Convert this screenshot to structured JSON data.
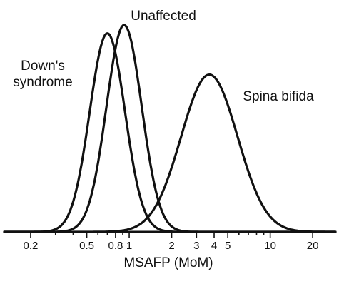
{
  "chart_data": {
    "type": "line",
    "title": "",
    "xlabel": "MSAFP (MoM)",
    "ylabel": "",
    "x_scale": "log",
    "xlim": [
      0.13,
      29
    ],
    "tick_labels": [
      "0.2",
      "0.5",
      "0.8",
      "1",
      "2",
      "3",
      "4",
      "5",
      "10",
      "20"
    ],
    "tick_values": [
      0.2,
      0.5,
      0.8,
      1,
      2,
      3,
      4,
      5,
      10,
      20
    ],
    "minor_ticks": [
      0.3,
      0.4,
      0.6,
      0.7,
      0.9,
      6,
      7,
      8,
      9
    ],
    "grid": false,
    "legend": "none",
    "series": [
      {
        "name": "Down's syndrome",
        "median": 0.7,
        "log_sd": 0.125,
        "relative_peak": 0.96
      },
      {
        "name": "Unaffected",
        "median": 0.92,
        "log_sd": 0.125,
        "relative_peak": 1.0
      },
      {
        "name": "Spina bifida",
        "median": 3.7,
        "log_sd": 0.2,
        "relative_peak": 0.76
      }
    ]
  },
  "labels": {
    "down_line1": "Down's",
    "down_line2": "syndrome",
    "unaffected": "Unaffected",
    "spina": "Spina bifida"
  }
}
